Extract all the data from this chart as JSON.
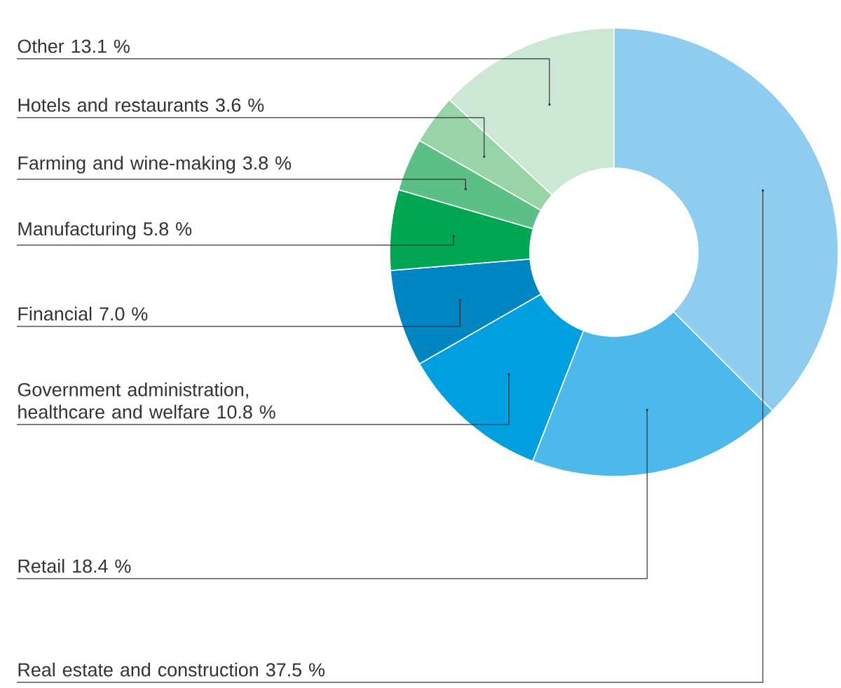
{
  "chart_data": {
    "type": "donut",
    "categories": [
      "Real estate and construction",
      "Retail",
      "Government administration, healthcare and welfare",
      "Financial",
      "Manufacturing",
      "Farming and wine-making",
      "Hotels and restaurants",
      "Other"
    ],
    "values": [
      37.5,
      18.4,
      10.8,
      7.0,
      5.8,
      3.8,
      3.6,
      13.1
    ],
    "value_labels": [
      "37.5 %",
      "18.4 %",
      "10.8 %",
      "7.0 %",
      "5.8 %",
      "3.8 %",
      "3.6 %",
      "13.1 %"
    ],
    "colors": [
      "#8fcdf0",
      "#4db8ea",
      "#00a0e0",
      "#0085c3",
      "#00a651",
      "#5cbf85",
      "#99d4a8",
      "#cce8d5"
    ]
  }
}
